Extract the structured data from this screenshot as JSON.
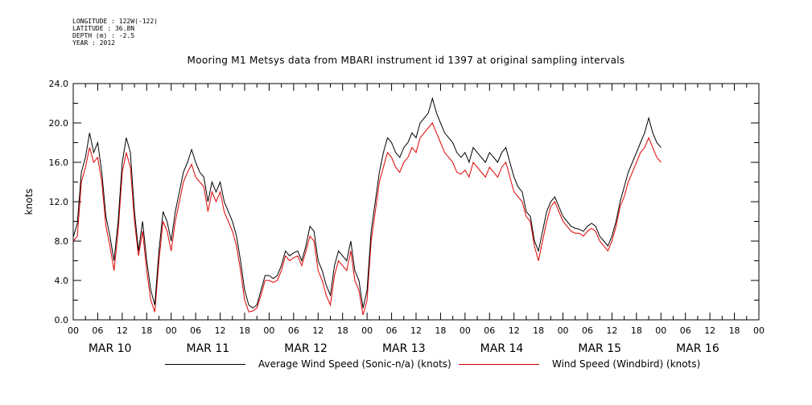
{
  "meta": {
    "longitude": "LONGITUDE : 122W(-122)",
    "latitude": "LATITUDE : 36.8N",
    "depth": "DEPTH (m) : -2.5",
    "year": "YEAR : 2012"
  },
  "chart_data": {
    "type": "line",
    "title": "Mooring M1 Metsys data from MBARI instrument id 1397 at original sampling intervals",
    "ylabel": "knots",
    "ylim": [
      0,
      24
    ],
    "yticks": [
      "0.0",
      "4.0",
      "8.0",
      "12.0",
      "16.0",
      "20.0",
      "24.0"
    ],
    "xlim_hours": [
      0,
      168
    ],
    "hour_tick_labels": [
      "00",
      "06",
      "12",
      "18",
      "00",
      "06",
      "12",
      "18",
      "00",
      "06",
      "12",
      "18",
      "00",
      "06",
      "12",
      "18",
      "00",
      "06",
      "12",
      "18",
      "00",
      "06",
      "12",
      "18",
      "00",
      "06",
      "12",
      "18",
      "00"
    ],
    "day_labels": [
      "MAR 10",
      "MAR 11",
      "MAR 12",
      "MAR 13",
      "MAR 14",
      "MAR 15",
      "MAR 16"
    ],
    "grid": false,
    "legend_position": "bottom",
    "colors": {
      "sonic": "#000000",
      "windbird": "#e00000"
    },
    "series": [
      {
        "name": "Average Wind Speed (Sonic-n/a) (knots)",
        "color": "#000000",
        "points": [
          [
            0,
            8.4
          ],
          [
            1,
            9.8
          ],
          [
            2,
            15
          ],
          [
            3,
            16.5
          ],
          [
            4,
            19
          ],
          [
            5,
            17
          ],
          [
            6,
            18
          ],
          [
            7,
            15
          ],
          [
            8,
            10.5
          ],
          [
            9,
            8.5
          ],
          [
            10,
            6
          ],
          [
            11,
            10
          ],
          [
            12,
            16
          ],
          [
            13,
            18.5
          ],
          [
            14,
            17
          ],
          [
            15,
            11
          ],
          [
            16,
            7
          ],
          [
            17,
            10
          ],
          [
            18,
            6
          ],
          [
            19,
            3
          ],
          [
            20,
            1.5
          ],
          [
            21,
            7
          ],
          [
            22,
            11
          ],
          [
            23,
            10
          ],
          [
            24,
            8
          ],
          [
            25,
            11
          ],
          [
            26,
            13
          ],
          [
            27,
            15
          ],
          [
            28,
            16
          ],
          [
            29,
            17.3
          ],
          [
            30,
            16
          ],
          [
            31,
            15
          ],
          [
            32,
            14.5
          ],
          [
            33,
            12
          ],
          [
            34,
            14
          ],
          [
            35,
            13
          ],
          [
            36,
            14
          ],
          [
            37,
            12
          ],
          [
            38,
            11
          ],
          [
            39,
            10
          ],
          [
            40,
            8.5
          ],
          [
            41,
            6
          ],
          [
            42,
            3
          ],
          [
            43,
            1.5
          ],
          [
            44,
            1.2
          ],
          [
            45,
            1.5
          ],
          [
            46,
            3
          ],
          [
            47,
            4.5
          ],
          [
            48,
            4.5
          ],
          [
            49,
            4.2
          ],
          [
            50,
            4.5
          ],
          [
            51,
            5.5
          ],
          [
            52,
            7
          ],
          [
            53,
            6.5
          ],
          [
            54,
            6.8
          ],
          [
            55,
            7
          ],
          [
            56,
            6
          ],
          [
            57,
            7.5
          ],
          [
            58,
            9.5
          ],
          [
            59,
            9
          ],
          [
            60,
            6
          ],
          [
            61,
            5
          ],
          [
            62,
            3.5
          ],
          [
            63,
            2.5
          ],
          [
            64,
            5.5
          ],
          [
            65,
            7
          ],
          [
            66,
            6.5
          ],
          [
            67,
            6
          ],
          [
            68,
            8
          ],
          [
            69,
            5
          ],
          [
            70,
            4
          ],
          [
            71,
            1.2
          ],
          [
            72,
            3
          ],
          [
            73,
            9
          ],
          [
            74,
            12
          ],
          [
            75,
            15
          ],
          [
            76,
            17
          ],
          [
            77,
            18.5
          ],
          [
            78,
            18
          ],
          [
            79,
            17
          ],
          [
            80,
            16.5
          ],
          [
            81,
            17.5
          ],
          [
            82,
            18
          ],
          [
            83,
            19
          ],
          [
            84,
            18.5
          ],
          [
            85,
            20
          ],
          [
            86,
            20.5
          ],
          [
            87,
            21
          ],
          [
            88,
            22.5
          ],
          [
            89,
            21
          ],
          [
            90,
            20
          ],
          [
            91,
            19
          ],
          [
            92,
            18.5
          ],
          [
            93,
            18
          ],
          [
            94,
            17
          ],
          [
            95,
            16.5
          ],
          [
            96,
            17
          ],
          [
            97,
            16
          ],
          [
            98,
            17.5
          ],
          [
            99,
            17
          ],
          [
            100,
            16.5
          ],
          [
            101,
            16
          ],
          [
            102,
            17
          ],
          [
            103,
            16.5
          ],
          [
            104,
            16
          ],
          [
            105,
            17
          ],
          [
            106,
            17.5
          ],
          [
            107,
            16
          ],
          [
            108,
            14.5
          ],
          [
            109,
            13.5
          ],
          [
            110,
            13
          ],
          [
            111,
            11
          ],
          [
            112,
            10.5
          ],
          [
            113,
            8
          ],
          [
            114,
            7
          ],
          [
            115,
            9
          ],
          [
            116,
            11
          ],
          [
            117,
            12
          ],
          [
            118,
            12.5
          ],
          [
            119,
            11.5
          ],
          [
            120,
            10.5
          ],
          [
            121,
            10
          ],
          [
            122,
            9.5
          ],
          [
            123,
            9.3
          ],
          [
            124,
            9.2
          ],
          [
            125,
            9
          ],
          [
            126,
            9.5
          ],
          [
            127,
            9.8
          ],
          [
            128,
            9.5
          ],
          [
            129,
            8.5
          ],
          [
            130,
            8
          ],
          [
            131,
            7.5
          ],
          [
            132,
            8.5
          ],
          [
            133,
            10
          ],
          [
            134,
            12
          ],
          [
            135,
            13.5
          ],
          [
            136,
            15
          ],
          [
            137,
            16
          ],
          [
            138,
            17
          ],
          [
            139,
            18
          ],
          [
            140,
            19
          ],
          [
            141,
            20.5
          ],
          [
            142,
            19
          ],
          [
            143,
            18
          ],
          [
            144,
            17.5
          ]
        ]
      },
      {
        "name": "Wind Speed (Windbird) (knots)",
        "color": "#e00000",
        "points": [
          [
            0,
            8
          ],
          [
            1,
            8.5
          ],
          [
            2,
            14
          ],
          [
            3,
            15.5
          ],
          [
            4,
            17.5
          ],
          [
            5,
            16
          ],
          [
            6,
            16.5
          ],
          [
            7,
            14
          ],
          [
            8,
            9.5
          ],
          [
            9,
            7.5
          ],
          [
            10,
            5
          ],
          [
            11,
            9
          ],
          [
            12,
            15
          ],
          [
            13,
            17
          ],
          [
            14,
            15.5
          ],
          [
            15,
            10
          ],
          [
            16,
            6.5
          ],
          [
            17,
            9
          ],
          [
            18,
            5
          ],
          [
            19,
            2
          ],
          [
            20,
            0.8
          ],
          [
            21,
            6
          ],
          [
            22,
            10
          ],
          [
            23,
            9
          ],
          [
            24,
            7
          ],
          [
            25,
            10
          ],
          [
            26,
            12
          ],
          [
            27,
            14
          ],
          [
            28,
            15
          ],
          [
            29,
            15.8
          ],
          [
            30,
            14.5
          ],
          [
            31,
            14
          ],
          [
            32,
            13.5
          ],
          [
            33,
            11
          ],
          [
            34,
            13
          ],
          [
            35,
            12
          ],
          [
            36,
            13
          ],
          [
            37,
            11
          ],
          [
            38,
            10
          ],
          [
            39,
            9
          ],
          [
            40,
            7.5
          ],
          [
            41,
            5
          ],
          [
            42,
            2
          ],
          [
            43,
            0.8
          ],
          [
            44,
            0.9
          ],
          [
            45,
            1.2
          ],
          [
            46,
            2.5
          ],
          [
            47,
            4
          ],
          [
            48,
            4
          ],
          [
            49,
            3.8
          ],
          [
            50,
            4
          ],
          [
            51,
            5
          ],
          [
            52,
            6.5
          ],
          [
            53,
            6
          ],
          [
            54,
            6.3
          ],
          [
            55,
            6.5
          ],
          [
            56,
            5.5
          ],
          [
            57,
            7
          ],
          [
            58,
            8.5
          ],
          [
            59,
            8
          ],
          [
            60,
            5
          ],
          [
            61,
            4
          ],
          [
            62,
            2.5
          ],
          [
            63,
            1.5
          ],
          [
            64,
            4.5
          ],
          [
            65,
            6
          ],
          [
            66,
            5.5
          ],
          [
            67,
            5
          ],
          [
            68,
            7
          ],
          [
            69,
            4
          ],
          [
            70,
            3
          ],
          [
            71,
            0.5
          ],
          [
            72,
            2
          ],
          [
            73,
            8
          ],
          [
            74,
            11
          ],
          [
            75,
            14
          ],
          [
            76,
            15.5
          ],
          [
            77,
            17
          ],
          [
            78,
            16.5
          ],
          [
            79,
            15.5
          ],
          [
            80,
            15
          ],
          [
            81,
            16
          ],
          [
            82,
            16.5
          ],
          [
            83,
            17.5
          ],
          [
            84,
            17
          ],
          [
            85,
            18.5
          ],
          [
            86,
            19
          ],
          [
            87,
            19.5
          ],
          [
            88,
            20
          ],
          [
            89,
            19
          ],
          [
            90,
            18
          ],
          [
            91,
            17
          ],
          [
            92,
            16.5
          ],
          [
            93,
            16
          ],
          [
            94,
            15
          ],
          [
            95,
            14.8
          ],
          [
            96,
            15.2
          ],
          [
            97,
            14.5
          ],
          [
            98,
            16
          ],
          [
            99,
            15.5
          ],
          [
            100,
            15
          ],
          [
            101,
            14.5
          ],
          [
            102,
            15.5
          ],
          [
            103,
            15
          ],
          [
            104,
            14.5
          ],
          [
            105,
            15.5
          ],
          [
            106,
            16
          ],
          [
            107,
            14.5
          ],
          [
            108,
            13
          ],
          [
            109,
            12.5
          ],
          [
            110,
            12
          ],
          [
            111,
            10.5
          ],
          [
            112,
            10
          ],
          [
            113,
            7.5
          ],
          [
            114,
            6
          ],
          [
            115,
            8
          ],
          [
            116,
            10
          ],
          [
            117,
            11.5
          ],
          [
            118,
            12
          ],
          [
            119,
            11
          ],
          [
            120,
            10
          ],
          [
            121,
            9.5
          ],
          [
            122,
            9
          ],
          [
            123,
            8.8
          ],
          [
            124,
            8.8
          ],
          [
            125,
            8.5
          ],
          [
            126,
            9
          ],
          [
            127,
            9.3
          ],
          [
            128,
            9
          ],
          [
            129,
            8
          ],
          [
            130,
            7.5
          ],
          [
            131,
            7
          ],
          [
            132,
            8
          ],
          [
            133,
            9.5
          ],
          [
            134,
            11.5
          ],
          [
            135,
            12.5
          ],
          [
            136,
            14
          ],
          [
            137,
            15
          ],
          [
            138,
            16
          ],
          [
            139,
            17
          ],
          [
            140,
            17.5
          ],
          [
            141,
            18.5
          ],
          [
            142,
            17.5
          ],
          [
            143,
            16.5
          ],
          [
            144,
            16
          ]
        ]
      }
    ]
  }
}
